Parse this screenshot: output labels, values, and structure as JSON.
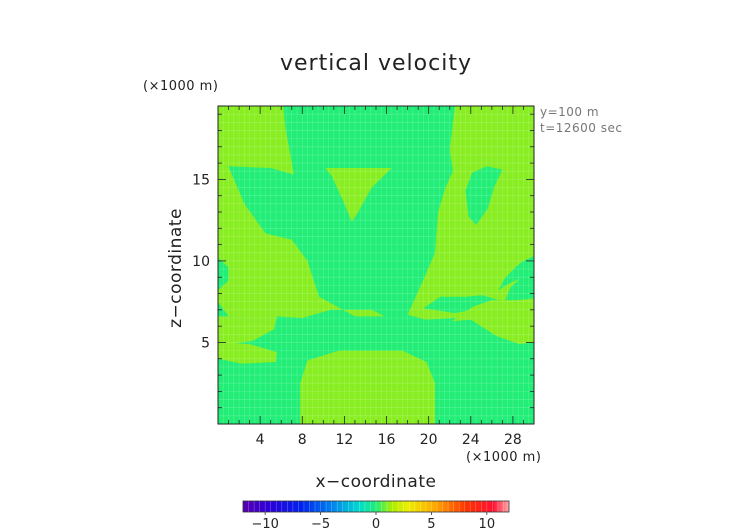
{
  "chart_data": {
    "type": "heatmap",
    "title": "vertical velocity",
    "xlabel": "x−coordinate",
    "ylabel": "z−coordinate",
    "x_unit": "(×1000 m)",
    "y_unit": "(×1000 m)",
    "info_lines": [
      "y=100 m",
      "t=12600 sec"
    ],
    "xlim": [
      0,
      30
    ],
    "ylim": [
      0,
      19.5
    ],
    "x_ticks": [
      4,
      8,
      12,
      16,
      20,
      24,
      28
    ],
    "x_tick_labels": [
      "4",
      "8",
      "12",
      "16",
      "20",
      "24",
      "28"
    ],
    "y_ticks": [
      5,
      10,
      15
    ],
    "y_tick_labels": [
      "5",
      "10",
      "15"
    ],
    "background_level": 0,
    "regions": [
      {
        "level": 1,
        "polygon": [
          [
            0,
            19.5
          ],
          [
            6.2,
            19.5
          ],
          [
            6.4,
            18.2
          ],
          [
            7.2,
            15.3
          ],
          [
            5,
            15.7
          ],
          [
            1,
            15.8
          ],
          [
            0,
            15.8
          ]
        ]
      },
      {
        "level": 1,
        "polygon": [
          [
            22.5,
            19.5
          ],
          [
            30,
            19.5
          ],
          [
            30,
            15.3
          ],
          [
            28,
            15
          ],
          [
            26.5,
            15.6
          ],
          [
            25.5,
            16.2
          ],
          [
            23.4,
            16.5
          ],
          [
            22.3,
            15.5
          ],
          [
            22,
            16.8
          ],
          [
            22.3,
            18.5
          ]
        ]
      },
      {
        "level": 1,
        "polygon": [
          [
            0,
            15.8
          ],
          [
            1,
            15.8
          ],
          [
            2.5,
            13.5
          ],
          [
            4.5,
            11.7
          ],
          [
            7,
            11.3
          ],
          [
            8.5,
            10
          ],
          [
            9.6,
            7.8
          ],
          [
            13,
            6.6
          ],
          [
            15.8,
            6.6
          ],
          [
            14.6,
            7
          ],
          [
            10.7,
            7
          ],
          [
            8,
            6.5
          ],
          [
            5.6,
            6.6
          ],
          [
            3.4,
            6.3
          ],
          [
            1,
            6.6
          ],
          [
            0,
            7.5
          ],
          [
            0,
            8.2
          ],
          [
            1,
            8.8
          ],
          [
            1,
            9.6
          ],
          [
            0,
            10.2
          ]
        ]
      },
      {
        "level": 1,
        "polygon": [
          [
            0,
            6.6
          ],
          [
            1,
            6.6
          ],
          [
            3.4,
            6.3
          ],
          [
            5.6,
            6.6
          ],
          [
            5.3,
            5.8
          ],
          [
            3.3,
            5.1
          ],
          [
            1.3,
            4.9
          ],
          [
            0,
            5
          ]
        ]
      },
      {
        "level": 1,
        "polygon": [
          [
            0,
            4
          ],
          [
            2.3,
            3.7
          ],
          [
            5.5,
            3.8
          ],
          [
            5.6,
            4.4
          ],
          [
            3,
            4.9
          ],
          [
            0,
            5
          ]
        ]
      },
      {
        "level": 1,
        "polygon": [
          [
            10.2,
            15.7
          ],
          [
            16.5,
            15.7
          ],
          [
            14.6,
            14.5
          ],
          [
            13.3,
            13
          ],
          [
            12.7,
            12.4
          ],
          [
            12,
            13.5
          ],
          [
            10.8,
            15.2
          ]
        ]
      },
      {
        "level": 1,
        "polygon": [
          [
            7.8,
            0
          ],
          [
            20.6,
            0
          ],
          [
            20.6,
            2.5
          ],
          [
            19.8,
            3.8
          ],
          [
            17.5,
            4.5
          ],
          [
            11.5,
            4.5
          ],
          [
            8.5,
            3.9
          ],
          [
            7.8,
            2.5
          ]
        ]
      },
      {
        "level": 1,
        "polygon": [
          [
            21.1,
            7.8
          ],
          [
            19.5,
            7.1
          ],
          [
            22.5,
            6.8
          ],
          [
            24.2,
            7
          ],
          [
            22.6,
            6.5
          ],
          [
            19.7,
            6.4
          ],
          [
            18,
            6.7
          ],
          [
            19.6,
            9
          ],
          [
            20.6,
            10.5
          ],
          [
            20.9,
            13
          ],
          [
            21.6,
            14.5
          ],
          [
            22.3,
            15.5
          ],
          [
            23.4,
            16.5
          ],
          [
            25.5,
            16.2
          ],
          [
            26.5,
            15.6
          ],
          [
            28,
            15
          ],
          [
            30,
            15.3
          ],
          [
            30,
            9.2
          ],
          [
            29,
            9.1
          ],
          [
            27.8,
            8.4
          ],
          [
            27.2,
            7.5
          ],
          [
            25.1,
            7.9
          ],
          [
            23.5,
            7.8
          ]
        ]
      },
      {
        "level": 1,
        "polygon": [
          [
            22.2,
            6.3
          ],
          [
            24,
            6.4
          ],
          [
            26.4,
            5.4
          ],
          [
            28.6,
            4.9
          ],
          [
            30,
            5
          ],
          [
            30,
            7.7
          ],
          [
            28.4,
            7.6
          ],
          [
            26,
            7.6
          ],
          [
            24.2,
            7.2
          ]
        ]
      }
    ],
    "holes": [
      {
        "level": 0,
        "polygon": [
          [
            23.8,
            12.7
          ],
          [
            24.5,
            12.2
          ],
          [
            25.6,
            13.2
          ],
          [
            26.2,
            14.5
          ],
          [
            27,
            15.6
          ],
          [
            25.5,
            15.8
          ],
          [
            24.1,
            15.4
          ],
          [
            23.5,
            14.3
          ]
        ]
      },
      {
        "level": 0,
        "polygon": [
          [
            26.6,
            8.2
          ],
          [
            27.6,
            8.6
          ],
          [
            29,
            9
          ],
          [
            30,
            9.2
          ],
          [
            30,
            10.3
          ],
          [
            29,
            10
          ],
          [
            28.4,
            9.7
          ],
          [
            27.3,
            9
          ]
        ]
      }
    ],
    "colorbar": {
      "min": -12,
      "max": 12,
      "ticks": [
        -10,
        -5,
        0,
        5,
        10
      ],
      "tick_labels": [
        "−10",
        "−5",
        "0",
        "5",
        "10"
      ]
    },
    "colors": {
      "level_0": "#22ee77",
      "level_1": "#88ee22",
      "grid": "#ffffff",
      "frame": "#222222"
    }
  }
}
